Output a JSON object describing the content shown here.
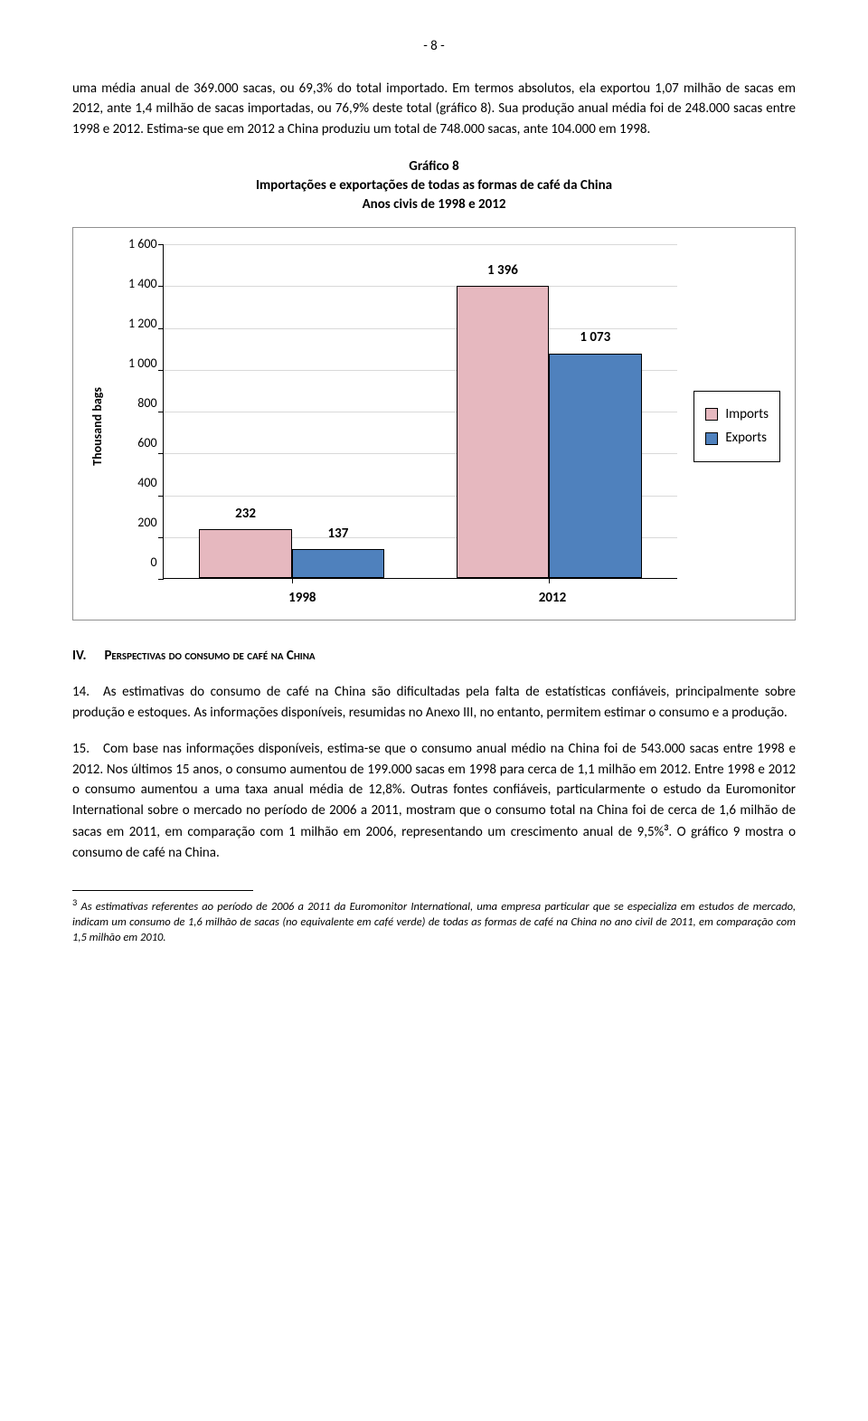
{
  "page_number": "- 8 -",
  "para1": "uma média anual de 369.000 sacas, ou 69,3% do total importado. Em termos absolutos, ela exportou 1,07 milhão de sacas em 2012, ante 1,4 milhão de sacas importadas, ou 76,9% deste total (gráfico 8). Sua produção anual média foi de 248.000 sacas entre 1998 e 2012. Estima-se que em 2012 a China produziu um total de 748.000 sacas, ante 104.000 em 1998.",
  "chart": {
    "title_line1": "Gráfico 8",
    "title_line2": "Importações e exportações de todas as formas de café da China",
    "title_line3": "Anos civis de 1998 e 2012",
    "ylabel": "Thousand bags",
    "yticks": [
      "1 600",
      "1 400",
      "1 200",
      "1 000",
      "800",
      "600",
      "400",
      "200",
      "0"
    ],
    "ymax": 1600,
    "ytick_step": 200,
    "categories": [
      "1998",
      "2012"
    ],
    "series": [
      {
        "name": "Imports",
        "color": "#e6b8bf",
        "values": [
          232,
          1396
        ]
      },
      {
        "name": "Exports",
        "color": "#4f81bd",
        "values": [
          137,
          1073
        ]
      }
    ],
    "value_labels": [
      "232",
      "137",
      "1 396",
      "1 073"
    ],
    "background": "#ffffff",
    "grid_color": "#d9d9d9",
    "border_color": "#000000"
  },
  "section_heading_num": "IV.",
  "section_heading_text": "Perspectivas do consumo de café na China",
  "para14": "14. As estimativas do consumo de café na China são dificultadas pela falta de estatísticas confiáveis, principalmente sobre produção e estoques. As informações disponíveis, resumidas no Anexo III, no entanto, permitem estimar o consumo e a produção.",
  "para15_a": "15. Com base nas informações disponíveis, estima-se que o consumo anual médio na China foi de 543.000 sacas entre 1998 e 2012. Nos últimos 15 anos, o consumo aumentou de 199.000 sacas em 1998 para cerca de 1,1 milhão em 2012. Entre 1998 e 2012 o consumo aumentou a uma taxa anual média de 12,8%. Outras fontes confiáveis, particularmente o estudo da Euromonitor International sobre o mercado no período de 2006 a 2011, mostram que o consumo total na China foi de cerca de 1,6 milhão de sacas em 2011, em comparação com 1 milhão em 2006, representando um crescimento anual de 9,5%",
  "para15_sup": "3",
  "para15_b": ". O gráfico 9 mostra o consumo de café na China.",
  "footnote_num": "3",
  "footnote_text": " As estimativas referentes ao período de 2006 a 2011 da Euromonitor International, uma empresa particular que se especializa em estudos de mercado, indicam um consumo de 1,6 milhão de sacas (no equivalente em café verde) de todas as formas de café na China no ano civil de 2011, em comparação com 1,5 milhão em 2010."
}
